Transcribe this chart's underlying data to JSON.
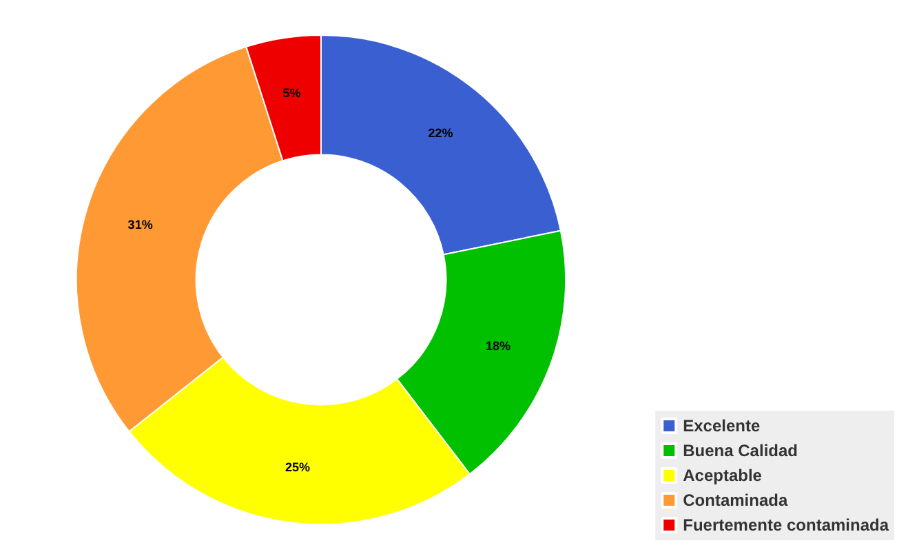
{
  "chart_data": {
    "type": "donut",
    "categories": [
      "Excelente",
      "Buena Calidad",
      "Aceptable",
      "Contaminada",
      "Fuertemente contaminada"
    ],
    "values": [
      22,
      18,
      25,
      31,
      5
    ],
    "value_labels": [
      "22%",
      "18%",
      "25%",
      "31%",
      "5%"
    ],
    "colors": [
      "#3a5fd0",
      "#00c000",
      "#ffff00",
      "#ff9933",
      "#ee0000"
    ],
    "legend": "bottom right"
  }
}
